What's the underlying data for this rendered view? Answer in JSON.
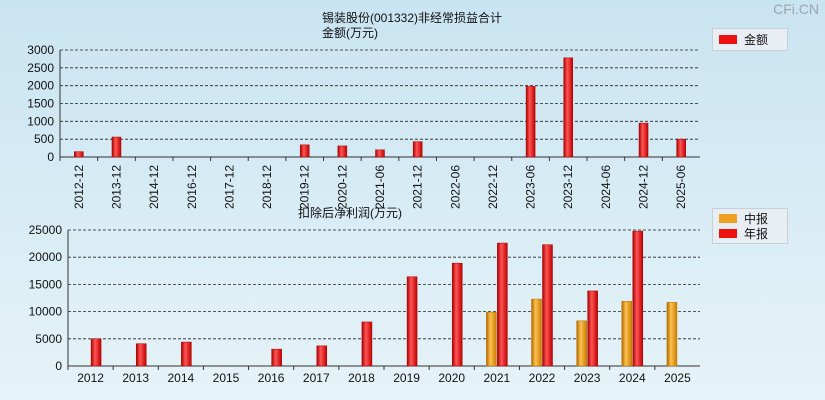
{
  "brand": "CFi.CN",
  "chart_data": [
    {
      "type": "bar",
      "title": "锡装股份(001332)非经常损益合计",
      "subtitle": "金额(万元)",
      "categories": [
        "2012-12",
        "2013-12",
        "2014-12",
        "2016-12",
        "2017-12",
        "2018-12",
        "2019-12",
        "2020-12",
        "2021-06",
        "2021-12",
        "2022-06",
        "2022-12",
        "2023-06",
        "2023-12",
        "2024-06",
        "2024-12",
        "2025-06"
      ],
      "series": [
        {
          "name": "金额",
          "color": "#ee1111",
          "values": [
            150,
            560,
            null,
            null,
            null,
            null,
            340,
            310,
            200,
            430,
            null,
            null,
            1980,
            2780,
            null,
            950,
            500
          ]
        }
      ],
      "yticks": [
        0,
        500,
        1000,
        1500,
        2000,
        2500,
        3000
      ],
      "ylim": [
        0,
        3000
      ],
      "grid": true,
      "legend": "top-right"
    },
    {
      "type": "bar",
      "title": "扣除后净利润(万元)",
      "categories": [
        "2012",
        "2013",
        "2014",
        "2015",
        "2016",
        "2017",
        "2018",
        "2019",
        "2020",
        "2021",
        "2022",
        "2023",
        "2024",
        "2025"
      ],
      "series": [
        {
          "name": "中报",
          "color": "#f0a020",
          "values": [
            null,
            null,
            null,
            null,
            null,
            null,
            null,
            null,
            null,
            9900,
            12300,
            8300,
            11900,
            11700
          ]
        },
        {
          "name": "年报",
          "color": "#ee1111",
          "values": [
            5000,
            4100,
            4400,
            null,
            3100,
            3700,
            8100,
            16400,
            18900,
            22600,
            22300,
            13800,
            24800,
            null
          ]
        }
      ],
      "yticks": [
        0,
        5000,
        10000,
        15000,
        20000,
        25000
      ],
      "ylim": [
        0,
        25000
      ],
      "grid": true,
      "legend": "top-right"
    }
  ]
}
